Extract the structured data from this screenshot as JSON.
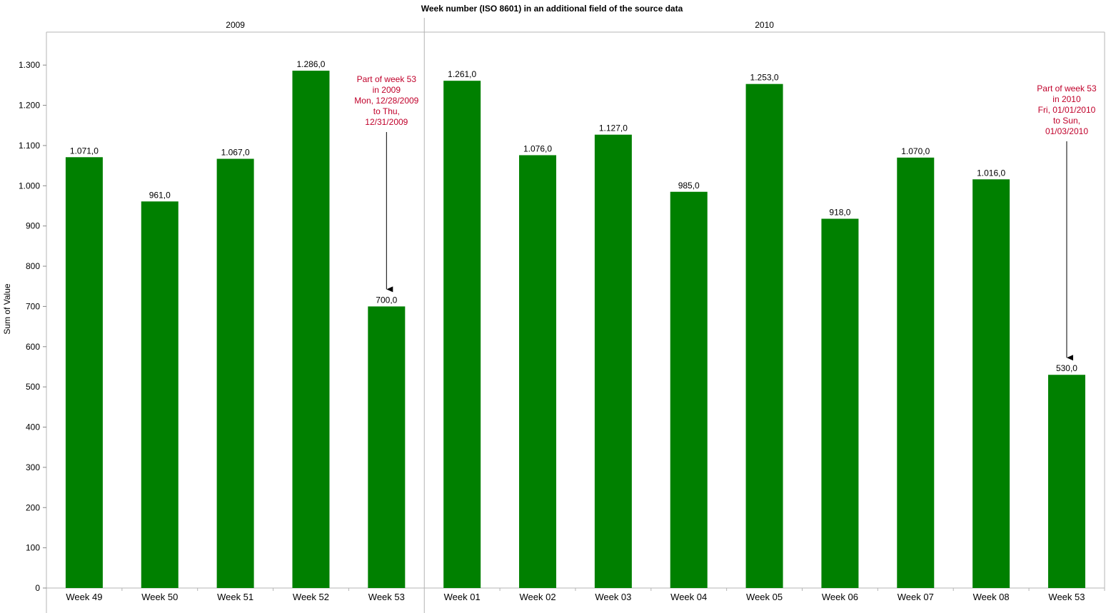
{
  "chart_data": {
    "type": "bar",
    "title": "Week number (ISO 8601) in an additional field of the source data",
    "ylabel": "Sum of Value",
    "xlabel": "",
    "ylim": [
      0,
      1400
    ],
    "yticks": [
      0,
      100,
      200,
      300,
      400,
      500,
      600,
      700,
      800,
      900,
      1000,
      1100,
      1200,
      1300
    ],
    "ytick_labels": [
      "0",
      "100",
      "200",
      "300",
      "400",
      "500",
      "600",
      "700",
      "800",
      "900",
      "1.000",
      "1.100",
      "1.200",
      "1.300"
    ],
    "grid": false,
    "bar_color": "#008000",
    "groups": [
      {
        "label": "2009",
        "categories": [
          "Week 49",
          "Week 50",
          "Week 51",
          "Week 52",
          "Week 53"
        ],
        "values": [
          1071,
          961,
          1067,
          1286,
          700
        ],
        "value_labels": [
          "1.071,0",
          "961,0",
          "1.067,0",
          "1.286,0",
          "700,0"
        ]
      },
      {
        "label": "2010",
        "categories": [
          "Week 01",
          "Week 02",
          "Week 03",
          "Week 04",
          "Week 05",
          "Week 06",
          "Week 07",
          "Week 08",
          "Week 53"
        ],
        "values": [
          1261,
          1076,
          1127,
          985,
          1253,
          918,
          1070,
          1016,
          530
        ],
        "value_labels": [
          "1.261,0",
          "1.076,0",
          "1.127,0",
          "985,0",
          "1.253,0",
          "918,0",
          "1.070,0",
          "1.016,0",
          "530,0"
        ]
      }
    ],
    "annotations": [
      {
        "group": 0,
        "category": "Week 53",
        "lines": [
          "Part of week 53",
          "in 2009",
          "Mon, 12/28/2009",
          "to Thu,",
          "12/31/2009"
        ],
        "color": "#c0002a"
      },
      {
        "group": 1,
        "category": "Week 53",
        "lines": [
          "Part of week 53",
          "in 2010",
          "Fri, 01/01/2010",
          "to Sun,",
          "01/03/2010"
        ],
        "color": "#c0002a"
      }
    ]
  }
}
